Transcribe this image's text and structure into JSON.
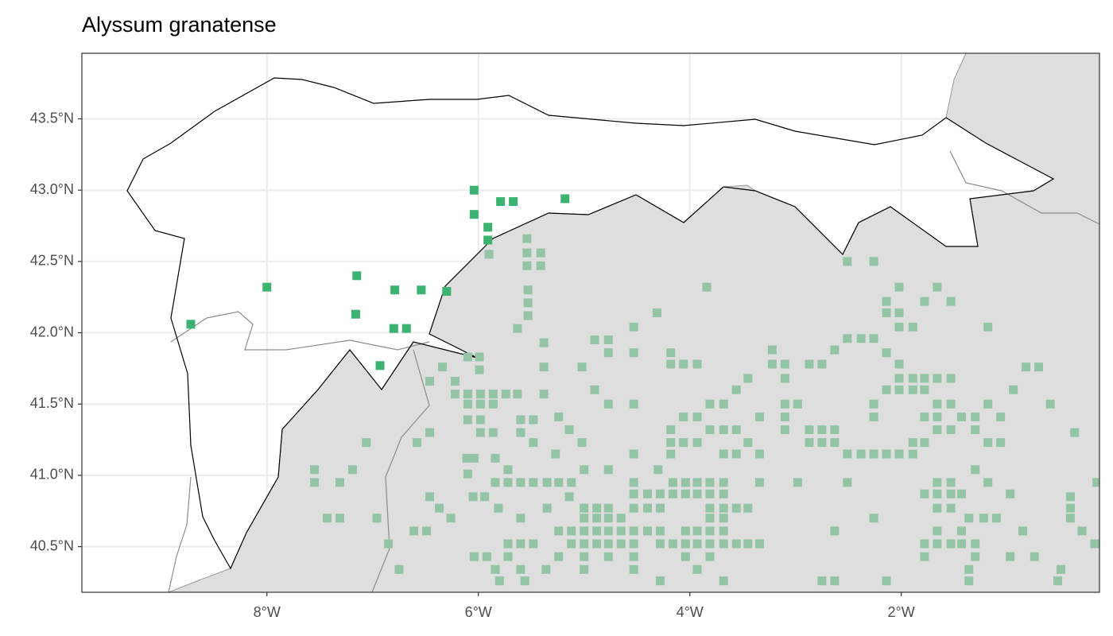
{
  "chart_data": {
    "type": "scatter",
    "title": "Alyssum granatense",
    "xlim": [
      -9.75,
      -0.125
    ],
    "ylim": [
      40.18,
      43.96
    ],
    "xticks": [
      {
        "value": -8,
        "label": "8°W"
      },
      {
        "value": -6,
        "label": "6°W"
      },
      {
        "value": -4,
        "label": "4°W"
      },
      {
        "value": -2,
        "label": "2°W"
      }
    ],
    "yticks": [
      {
        "value": 40.5,
        "label": "40.5°N"
      },
      {
        "value": 41,
        "label": "41.0°N"
      },
      {
        "value": 41.5,
        "label": "41.5°N"
      },
      {
        "value": 42,
        "label": "42.0°N"
      },
      {
        "value": 42.5,
        "label": "42.5°N"
      },
      {
        "value": 43,
        "label": "43.0°N"
      },
      {
        "value": 43.5,
        "label": "43.5°N"
      }
    ],
    "grid": true,
    "series": [
      {
        "color": "#93c4a6",
        "x": [
          -5.54,
          -5.54,
          -5.41,
          -5.9,
          -5.54,
          -5.41,
          -5.53,
          -5.53,
          -5.53,
          -5.63,
          -5.38,
          -5.99,
          -6.1,
          -5.38,
          -5.99,
          -5.02,
          -4.9,
          -4.77,
          -4.77,
          -4.53,
          -4.53,
          -4.31,
          -4.18,
          -4.18,
          -4.06,
          -3.93,
          -3.84,
          -3.45,
          -3.22,
          -3.22,
          -3.1,
          -3.1,
          -2.87,
          -2.75,
          -2.63,
          -2.51,
          -2.38,
          -2.26,
          -2.14,
          -2.02,
          -2.02,
          -2.14,
          -2.02,
          -1.89,
          -2.51,
          -2.26,
          -1.78,
          -1.66,
          -1.53,
          -1.18,
          -0.82,
          -0.7,
          -0.94,
          -0.59,
          -0.36,
          -2.14,
          -2.02,
          -2.02,
          -1.89,
          -1.78,
          -1.66,
          -1.53,
          -2.14,
          -2.02,
          -1.89,
          -1.78,
          -1.66,
          -1.53,
          -1.43,
          -1.3,
          -1.18,
          -1.06,
          -2.26,
          -2.26,
          -1.78,
          -1.66,
          -1.53,
          -1.3,
          -1.18,
          -1.06,
          -1.89,
          -1.78,
          -1.66,
          -2.51,
          -2.38,
          -2.26,
          -2.14,
          -2.02,
          -1.89,
          -2.87,
          -2.75,
          -2.63,
          -2.75,
          -2.63,
          -3.1,
          -3.1,
          -3.1,
          -2.98,
          -2.87,
          -3.34,
          -3.45,
          -3.56,
          -3.68,
          -3.81,
          -3.93,
          -4.06,
          -4.18,
          -4.18,
          -4.06,
          -3.93,
          -3.81,
          -3.68,
          -3.56,
          -3.68,
          -3.56,
          -3.34,
          -4.18,
          -4.53,
          -4.53,
          -4.77,
          -5.02,
          -5.27,
          -5.48,
          -5.6,
          -5.38,
          -5.63,
          -5.74,
          -5.86,
          -5.98,
          -6.1,
          -6.22,
          -6.22,
          -6.1,
          -5.98,
          -5.86,
          -5.98,
          -6.1,
          -5.98,
          -5.86,
          -5.6,
          -5.48,
          -5.24,
          -5.14,
          -4.9,
          -6.46,
          -6.34,
          -6.46,
          -6.58,
          -7.06,
          -7.19,
          -7.55,
          -7.55,
          -7.31,
          -7.43,
          -7.31,
          -6.96,
          -6.85,
          -6.75,
          -6.61,
          -6.49,
          -6.46,
          -6.37,
          -6.26,
          -6.11,
          -6.1,
          -6.05,
          -5.94,
          -5.81,
          -5.84,
          -5.72,
          -5.84,
          -5.72,
          -5.6,
          -5.48,
          -5.35,
          -5.24,
          -5.12,
          -5.0,
          -4.77,
          -4.53,
          -4.3,
          -4.16,
          -4.04,
          -3.93,
          -3.81,
          -3.68,
          -3.34,
          -2.98,
          -2.51,
          -1.66,
          -1.53,
          -1.3,
          -1.18,
          -1.78,
          -1.66,
          -1.53,
          -1.43,
          -0.97,
          -0.4,
          -0.4,
          -0.4,
          -0.29,
          -0.17,
          -0.15,
          -1.66,
          -1.53,
          -1.36,
          -1.22,
          -1.1,
          -1.66,
          -1.43,
          -0.85,
          -1.78,
          -1.66,
          -1.53,
          -1.43,
          -1.3,
          -1.78,
          -1.3,
          -0.97,
          -0.74,
          -1.36,
          -0.49,
          -0.52,
          -1.36,
          -2.63,
          -2.26,
          -2.75,
          -2.63,
          -2.14,
          -5.0,
          -4.88,
          -4.77,
          -5.0,
          -4.88,
          -4.77,
          -4.65,
          -4.53,
          -4.4,
          -4.28,
          -4.53,
          -4.4,
          -4.28,
          -4.16,
          -4.04,
          -3.93,
          -3.81,
          -3.68,
          -3.81,
          -3.68,
          -3.56,
          -3.45,
          -3.81,
          -3.68,
          -4.04,
          -3.93,
          -3.81,
          -3.68,
          -4.04,
          -3.93,
          -3.81,
          -3.68,
          -3.56,
          -3.45,
          -3.34,
          -5.24,
          -5.12,
          -5.0,
          -4.88,
          -4.77,
          -4.65,
          -4.53,
          -4.4,
          -4.28,
          -4.16,
          -4.28,
          -4.53,
          -4.65,
          -4.77,
          -4.88,
          -5.0,
          -5.12,
          -5.72,
          -5.6,
          -5.48,
          -5.24,
          -5.0,
          -4.77,
          -4.53,
          -4.04,
          -3.81,
          -5.72,
          -5.84,
          -5.6,
          -5.36,
          -5.0,
          -4.53,
          -3.93,
          -5.8,
          -5.56,
          -4.28,
          -3.68,
          -6.04,
          -5.92,
          -5.6,
          -5.35,
          -5.14,
          -6.04
        ],
        "values": [
          42.66,
          42.56,
          42.56,
          42.55,
          42.47,
          42.47,
          42.3,
          42.21,
          42.12,
          42.03,
          41.93,
          41.83,
          41.83,
          41.76,
          41.74,
          41.76,
          41.95,
          41.95,
          41.86,
          41.86,
          42.04,
          42.14,
          41.86,
          41.78,
          41.78,
          41.78,
          42.32,
          41.68,
          41.88,
          41.78,
          41.78,
          41.68,
          41.78,
          41.78,
          41.88,
          41.96,
          41.96,
          41.96,
          42.14,
          42.14,
          42.32,
          42.22,
          42.04,
          42.04,
          42.5,
          42.5,
          42.22,
          42.32,
          42.22,
          42.04,
          41.76,
          41.76,
          41.6,
          41.5,
          41.3,
          41.86,
          41.78,
          41.68,
          41.68,
          41.68,
          41.68,
          41.68,
          41.6,
          41.6,
          41.6,
          41.6,
          41.5,
          41.5,
          41.41,
          41.41,
          41.5,
          41.41,
          41.5,
          41.41,
          41.41,
          41.41,
          41.32,
          41.32,
          41.23,
          41.23,
          41.23,
          41.23,
          41.32,
          41.15,
          41.15,
          41.15,
          41.15,
          41.15,
          41.15,
          41.23,
          41.23,
          41.23,
          41.32,
          41.32,
          41.32,
          41.41,
          41.5,
          41.5,
          41.32,
          41.41,
          41.23,
          41.6,
          41.5,
          41.5,
          41.41,
          41.41,
          41.32,
          41.23,
          41.23,
          41.23,
          41.32,
          41.32,
          41.32,
          41.15,
          41.15,
          41.15,
          41.15,
          41.15,
          41.5,
          41.5,
          41.23,
          41.15,
          41.23,
          41.3,
          41.57,
          41.57,
          41.57,
          41.57,
          41.57,
          41.57,
          41.57,
          41.66,
          41.5,
          41.5,
          41.5,
          41.39,
          41.39,
          41.3,
          41.3,
          41.39,
          41.39,
          41.41,
          41.32,
          41.6,
          41.66,
          41.76,
          41.3,
          41.23,
          41.23,
          41.04,
          41.04,
          40.95,
          40.95,
          40.7,
          40.7,
          40.7,
          40.52,
          40.34,
          40.61,
          40.61,
          40.85,
          40.77,
          40.7,
          41.12,
          41.01,
          40.85,
          40.85,
          40.77,
          41.12,
          41.04,
          40.95,
          40.95,
          40.95,
          40.95,
          40.95,
          40.95,
          40.95,
          41.04,
          41.04,
          40.95,
          41.04,
          40.95,
          40.95,
          40.95,
          40.95,
          40.95,
          40.95,
          40.95,
          40.95,
          40.95,
          40.95,
          41.04,
          40.95,
          40.87,
          40.87,
          40.87,
          40.87,
          40.87,
          40.85,
          40.77,
          40.7,
          40.61,
          40.52,
          40.95,
          40.77,
          40.77,
          40.7,
          40.7,
          40.7,
          40.61,
          40.61,
          40.61,
          40.52,
          40.52,
          40.52,
          40.52,
          40.52,
          40.43,
          40.43,
          40.43,
          40.43,
          40.34,
          40.34,
          40.26,
          40.26,
          40.61,
          40.7,
          40.26,
          40.26,
          40.26,
          40.77,
          40.77,
          40.77,
          40.7,
          40.7,
          40.7,
          40.7,
          40.77,
          40.77,
          40.77,
          40.87,
          40.87,
          40.87,
          40.87,
          40.87,
          40.87,
          40.87,
          40.87,
          40.77,
          40.77,
          40.77,
          40.77,
          40.7,
          40.7,
          40.61,
          40.61,
          40.61,
          40.61,
          40.52,
          40.52,
          40.52,
          40.52,
          40.52,
          40.52,
          40.52,
          40.61,
          40.61,
          40.61,
          40.61,
          40.61,
          40.61,
          40.61,
          40.61,
          40.61,
          40.52,
          40.52,
          40.52,
          40.52,
          40.52,
          40.52,
          40.52,
          40.52,
          40.52,
          40.52,
          40.52,
          40.43,
          40.43,
          40.43,
          40.43,
          40.43,
          40.43,
          40.43,
          40.34,
          40.34,
          40.34,
          40.34,
          40.34,
          40.34,
          40.26,
          40.26,
          40.26,
          40.26,
          40.43,
          40.43,
          40.7,
          40.77,
          40.85,
          41.12
        ]
      },
      {
        "color": "#3cb371",
        "x": [
          -6.04,
          -6.04,
          -5.79,
          -5.67,
          -5.18,
          -5.91,
          -5.91,
          -8.0,
          -7.15,
          -7.16,
          -6.79,
          -6.54,
          -6.3,
          -8.72,
          -6.8,
          -6.68,
          -6.93
        ],
        "values": [
          43.0,
          42.83,
          42.92,
          42.92,
          42.94,
          42.74,
          42.65,
          42.32,
          42.4,
          42.13,
          42.3,
          42.3,
          42.29,
          42.06,
          42.03,
          42.03,
          41.77
        ]
      }
    ]
  }
}
